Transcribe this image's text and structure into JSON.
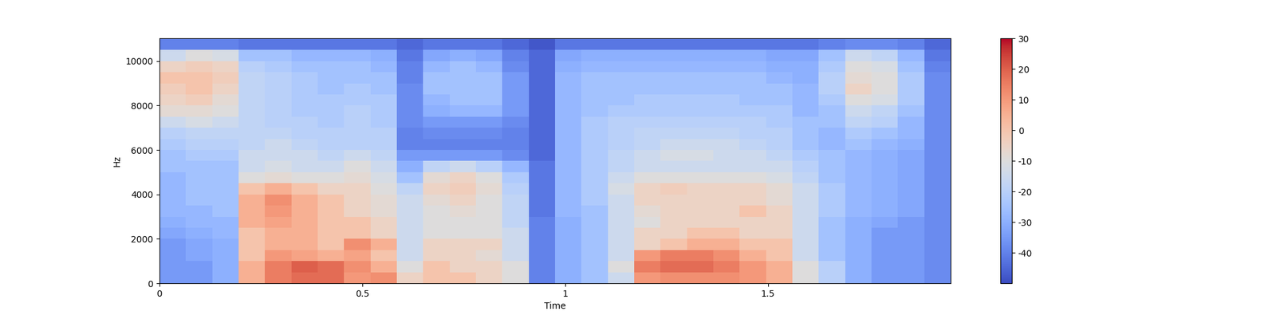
{
  "chart_data": {
    "type": "heatmap",
    "color": "coolwarm",
    "x_label": "Time",
    "y_label": "Hz",
    "xlim": [
      0,
      1.95
    ],
    "ylim": [
      0,
      11025
    ],
    "xticks": [
      0,
      0.5,
      1,
      1.5
    ],
    "yticks": [
      0,
      2000,
      4000,
      6000,
      8000,
      10000
    ],
    "color_range": [
      -50,
      30
    ],
    "color_ticks": [
      -40,
      -30,
      -20,
      -10,
      0,
      10,
      20,
      30
    ],
    "x": [
      0,
      0.065,
      0.13,
      0.195,
      0.26,
      0.325,
      0.39,
      0.455,
      0.52,
      0.585,
      0.65,
      0.715,
      0.78,
      0.845,
      0.91,
      0.975,
      1.04,
      1.105,
      1.17,
      1.235,
      1.3,
      1.365,
      1.43,
      1.495,
      1.56,
      1.625,
      1.69,
      1.755,
      1.82,
      1.885,
      1.95
    ],
    "y": [
      0,
      500,
      1000,
      1500,
      2000,
      2500,
      3000,
      3500,
      4000,
      4500,
      5000,
      5500,
      6000,
      6500,
      7000,
      7500,
      8000,
      8500,
      9000,
      9500,
      10000,
      10500,
      11025
    ],
    "cells": [
      [
        -35,
        -35,
        -30,
        5,
        15,
        18,
        18,
        10,
        12,
        -5,
        0,
        0,
        -5,
        -10,
        -40,
        -30,
        -25,
        -15,
        10,
        12,
        12,
        12,
        10,
        5,
        -10,
        -20,
        -30,
        -35,
        -35,
        -38
      ],
      [
        -35,
        -35,
        -30,
        5,
        15,
        20,
        18,
        12,
        5,
        -10,
        0,
        -5,
        -5,
        -10,
        -40,
        -30,
        -25,
        -10,
        15,
        18,
        18,
        15,
        10,
        5,
        -10,
        -20,
        -30,
        -35,
        -35,
        -38
      ],
      [
        -35,
        -32,
        -30,
        0,
        10,
        8,
        5,
        8,
        0,
        -15,
        -5,
        -5,
        -8,
        -15,
        -40,
        -30,
        -25,
        -15,
        10,
        15,
        15,
        12,
        5,
        0,
        -15,
        -25,
        -30,
        -35,
        -35,
        -38
      ],
      [
        -35,
        -32,
        -30,
        0,
        5,
        5,
        0,
        12,
        5,
        -15,
        -5,
        -5,
        -5,
        -15,
        -40,
        -30,
        -25,
        -15,
        -5,
        0,
        5,
        5,
        0,
        0,
        -15,
        -25,
        -30,
        -35,
        -35,
        -38
      ],
      [
        -32,
        -30,
        -28,
        0,
        5,
        5,
        0,
        0,
        -5,
        -15,
        -10,
        -10,
        -10,
        -15,
        -40,
        -30,
        -25,
        -15,
        -5,
        -5,
        0,
        0,
        -5,
        -5,
        -15,
        -25,
        -30,
        -35,
        -35,
        -38
      ],
      [
        -30,
        -28,
        -28,
        5,
        8,
        5,
        0,
        0,
        -5,
        -15,
        -10,
        -10,
        -10,
        -18,
        -40,
        -30,
        -25,
        -15,
        -10,
        -5,
        -5,
        -5,
        -5,
        -5,
        -15,
        -25,
        -30,
        -32,
        -35,
        -38
      ],
      [
        -28,
        -28,
        -25,
        5,
        10,
        5,
        0,
        -5,
        -8,
        -15,
        -10,
        -8,
        -10,
        -18,
        -42,
        -28,
        -25,
        -15,
        -8,
        -5,
        -5,
        -5,
        0,
        -5,
        -15,
        -22,
        -28,
        -30,
        -32,
        -38
      ],
      [
        -28,
        -25,
        -25,
        5,
        12,
        5,
        0,
        -5,
        -8,
        -15,
        -8,
        -5,
        -10,
        -18,
        -42,
        -28,
        -22,
        -15,
        -5,
        -5,
        -5,
        -5,
        -5,
        -8,
        -15,
        -22,
        -28,
        -30,
        -32,
        -38
      ],
      [
        -28,
        -25,
        -25,
        0,
        5,
        0,
        -5,
        -5,
        -10,
        -18,
        -5,
        -3,
        -8,
        -20,
        -42,
        -28,
        -22,
        -12,
        -5,
        -3,
        -5,
        -5,
        -5,
        -8,
        -15,
        -22,
        -28,
        -30,
        -32,
        -38
      ],
      [
        -28,
        -25,
        -25,
        -10,
        -8,
        -10,
        -10,
        -8,
        -12,
        -25,
        -8,
        -5,
        -10,
        -22,
        -42,
        -28,
        -22,
        -15,
        -10,
        -10,
        -10,
        -10,
        -10,
        -12,
        -18,
        -25,
        -28,
        -30,
        -32,
        -38
      ],
      [
        -25,
        -25,
        -25,
        -15,
        -12,
        -15,
        -15,
        -10,
        -15,
        -30,
        -18,
        -15,
        -20,
        -28,
        -42,
        -28,
        -22,
        -18,
        -15,
        -15,
        -15,
        -15,
        -15,
        -15,
        -20,
        -25,
        -28,
        -30,
        -32,
        -38
      ],
      [
        -25,
        -22,
        -22,
        -15,
        -15,
        -15,
        -18,
        -15,
        -18,
        -35,
        -35,
        -35,
        -35,
        -38,
        -45,
        -28,
        -22,
        -18,
        -15,
        -12,
        -12,
        -15,
        -15,
        -18,
        -22,
        -25,
        -28,
        -30,
        -32,
        -38
      ],
      [
        -22,
        -20,
        -20,
        -18,
        -15,
        -18,
        -20,
        -20,
        -20,
        -40,
        -40,
        -40,
        -40,
        -40,
        -45,
        -28,
        -22,
        -20,
        -18,
        -15,
        -15,
        -15,
        -18,
        -20,
        -25,
        -28,
        -25,
        -28,
        -30,
        -38
      ],
      [
        -20,
        -18,
        -18,
        -18,
        -18,
        -20,
        -20,
        -20,
        -20,
        -40,
        -38,
        -38,
        -38,
        -40,
        -45,
        -28,
        -22,
        -20,
        -18,
        -18,
        -18,
        -18,
        -20,
        -20,
        -25,
        -28,
        -22,
        -25,
        -28,
        -38
      ],
      [
        -15,
        -12,
        -15,
        -18,
        -20,
        -20,
        -22,
        -20,
        -22,
        -38,
        -35,
        -35,
        -35,
        -38,
        -45,
        -28,
        -22,
        -20,
        -20,
        -20,
        -20,
        -20,
        -20,
        -22,
        -25,
        -25,
        -18,
        -20,
        -28,
        -38
      ],
      [
        -8,
        -8,
        -10,
        -18,
        -20,
        -22,
        -22,
        -20,
        -22,
        -38,
        -30,
        -28,
        -28,
        -35,
        -45,
        -28,
        -25,
        -22,
        -22,
        -22,
        -22,
        -22,
        -22,
        -22,
        -28,
        -25,
        -15,
        -18,
        -25,
        -38
      ],
      [
        -5,
        -3,
        -8,
        -18,
        -20,
        -22,
        -22,
        -22,
        -22,
        -38,
        -28,
        -25,
        -25,
        -35,
        -45,
        -28,
        -25,
        -25,
        -22,
        -22,
        -22,
        -22,
        -25,
        -25,
        -28,
        -22,
        -10,
        -12,
        -22,
        -38
      ],
      [
        -3,
        0,
        -5,
        -18,
        -20,
        -22,
        -25,
        -22,
        -25,
        -38,
        -25,
        -25,
        -25,
        -35,
        -45,
        -28,
        -25,
        -25,
        -25,
        -25,
        -25,
        -25,
        -25,
        -25,
        -28,
        -20,
        -5,
        -10,
        -22,
        -38
      ],
      [
        0,
        0,
        -3,
        -18,
        -20,
        -22,
        -25,
        -25,
        -25,
        -40,
        -25,
        -25,
        -25,
        -35,
        -45,
        -28,
        -25,
        -25,
        -25,
        -25,
        -25,
        -25,
        -25,
        -28,
        -30,
        -20,
        -8,
        -10,
        -22,
        -38
      ],
      [
        -5,
        -3,
        -5,
        -20,
        -22,
        -25,
        -25,
        -25,
        -28,
        -40,
        -28,
        -25,
        -28,
        -38,
        -45,
        -30,
        -28,
        -28,
        -28,
        -28,
        -28,
        -28,
        -28,
        -30,
        -30,
        -22,
        -10,
        -12,
        -25,
        -40
      ],
      [
        -15,
        -10,
        -12,
        -25,
        -25,
        -28,
        -28,
        -28,
        -30,
        -42,
        -32,
        -30,
        -32,
        -40,
        -45,
        -32,
        -30,
        -30,
        -30,
        -30,
        -30,
        -30,
        -30,
        -32,
        -32,
        -25,
        -15,
        -18,
        -28,
        -42
      ],
      [
        -40,
        -40,
        -40,
        -42,
        -42,
        -42,
        -42,
        -42,
        -42,
        -45,
        -42,
        -42,
        -42,
        -45,
        -48,
        -42,
        -42,
        -42,
        -42,
        -42,
        -42,
        -42,
        -42,
        -42,
        -42,
        -40,
        -38,
        -38,
        -40,
        -45
      ]
    ]
  }
}
